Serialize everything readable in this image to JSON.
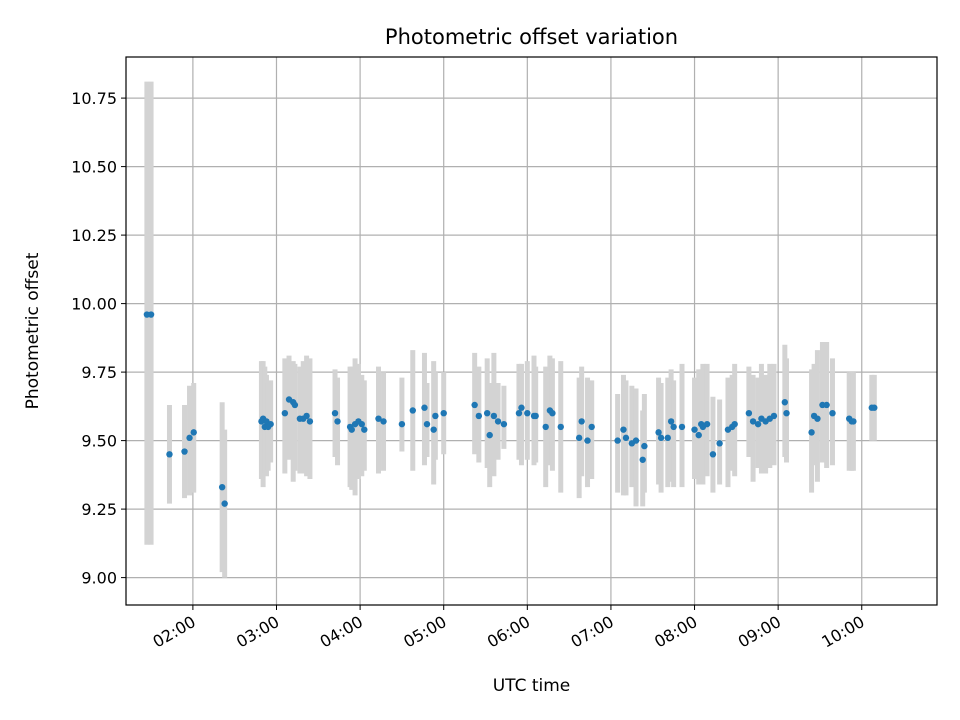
{
  "chart_data": {
    "type": "scatter",
    "title": "Photometric offset variation",
    "xlabel": "UTC time",
    "ylabel": "Photometric offset",
    "x_unit": "hours (UTC)",
    "xlim": [
      1.2,
      10.9
    ],
    "ylim": [
      8.9,
      10.9
    ],
    "x_ticks": [
      {
        "value": 2,
        "label": "02:00"
      },
      {
        "value": 3,
        "label": "03:00"
      },
      {
        "value": 4,
        "label": "04:00"
      },
      {
        "value": 5,
        "label": "05:00"
      },
      {
        "value": 6,
        "label": "06:00"
      },
      {
        "value": 7,
        "label": "07:00"
      },
      {
        "value": 8,
        "label": "08:00"
      },
      {
        "value": 9,
        "label": "09:00"
      },
      {
        "value": 10,
        "label": "10:00"
      }
    ],
    "y_ticks": [
      {
        "value": 9.0,
        "label": "9.00"
      },
      {
        "value": 9.25,
        "label": "9.25"
      },
      {
        "value": 9.5,
        "label": "9.50"
      },
      {
        "value": 9.75,
        "label": "9.75"
      },
      {
        "value": 10.0,
        "label": "10.00"
      },
      {
        "value": 10.25,
        "label": "10.25"
      },
      {
        "value": 10.5,
        "label": "10.50"
      },
      {
        "value": 10.75,
        "label": "10.75"
      }
    ],
    "grid": true,
    "colors": {
      "point": "#1f77b4",
      "errorbar": "#d3d3d3"
    },
    "series": [
      {
        "x": [
          1.45,
          1.5,
          1.72,
          1.9,
          1.96,
          2.01,
          2.35,
          2.38,
          2.82,
          2.84,
          2.86,
          2.88,
          2.9,
          2.93,
          3.1,
          3.15,
          3.2,
          3.22,
          3.28,
          3.32,
          3.36,
          3.4,
          3.7,
          3.73,
          3.88,
          3.9,
          3.94,
          3.98,
          4.02,
          4.05,
          4.22,
          4.28,
          4.5,
          4.63,
          4.77,
          4.8,
          4.88,
          4.9,
          5.0,
          5.37,
          5.42,
          5.52,
          5.55,
          5.6,
          5.65,
          5.72,
          5.9,
          5.93,
          6.0,
          6.08,
          6.1,
          6.22,
          6.27,
          6.3,
          6.4,
          6.62,
          6.65,
          6.72,
          6.77,
          7.08,
          7.15,
          7.18,
          7.25,
          7.3,
          7.38,
          7.4,
          7.57,
          7.6,
          7.68,
          7.72,
          7.75,
          7.85,
          8.0,
          8.05,
          8.08,
          8.1,
          8.15,
          8.22,
          8.3,
          8.4,
          8.45,
          8.48,
          8.65,
          8.7,
          8.76,
          8.8,
          8.85,
          8.9,
          8.95,
          9.08,
          9.1,
          9.4,
          9.43,
          9.47,
          9.53,
          9.58,
          9.65,
          9.85,
          9.88,
          9.9,
          10.12,
          10.15
        ],
        "y": [
          9.96,
          9.96,
          9.45,
          9.46,
          9.51,
          9.53,
          9.33,
          9.27,
          9.57,
          9.58,
          9.55,
          9.57,
          9.55,
          9.56,
          9.6,
          9.65,
          9.64,
          9.63,
          9.58,
          9.58,
          9.59,
          9.57,
          9.6,
          9.57,
          9.55,
          9.54,
          9.56,
          9.57,
          9.56,
          9.54,
          9.58,
          9.57,
          9.56,
          9.61,
          9.62,
          9.56,
          9.54,
          9.59,
          9.6,
          9.63,
          9.59,
          9.6,
          9.52,
          9.59,
          9.57,
          9.56,
          9.6,
          9.62,
          9.6,
          9.59,
          9.59,
          9.55,
          9.61,
          9.6,
          9.55,
          9.51,
          9.57,
          9.5,
          9.55,
          9.5,
          9.54,
          9.51,
          9.49,
          9.5,
          9.43,
          9.48,
          9.53,
          9.51,
          9.51,
          9.57,
          9.55,
          9.55,
          9.54,
          9.52,
          9.56,
          9.55,
          9.56,
          9.45,
          9.49,
          9.54,
          9.55,
          9.56,
          9.6,
          9.57,
          9.56,
          9.58,
          9.57,
          9.58,
          9.59,
          9.64,
          9.6,
          9.53,
          9.59,
          9.58,
          9.63,
          9.63,
          9.6,
          9.58,
          9.57,
          9.57,
          9.62,
          9.62
        ],
        "yerr_low": [
          9.12,
          9.12,
          9.27,
          9.29,
          9.3,
          9.31,
          9.02,
          9.0,
          9.36,
          9.33,
          9.38,
          9.37,
          9.39,
          9.42,
          9.38,
          9.43,
          9.35,
          9.39,
          9.38,
          9.38,
          9.37,
          9.36,
          9.44,
          9.41,
          9.33,
          9.32,
          9.3,
          9.36,
          9.37,
          9.39,
          9.38,
          9.39,
          9.46,
          9.39,
          9.41,
          9.44,
          9.34,
          9.43,
          9.45,
          9.45,
          9.42,
          9.4,
          9.33,
          9.37,
          9.43,
          9.47,
          9.43,
          9.41,
          9.43,
          9.41,
          9.42,
          9.33,
          9.41,
          9.39,
          9.31,
          9.29,
          9.37,
          9.33,
          9.36,
          9.31,
          9.3,
          9.3,
          9.33,
          9.26,
          9.26,
          9.31,
          9.34,
          9.31,
          9.33,
          9.35,
          9.33,
          9.33,
          9.36,
          9.34,
          9.35,
          9.34,
          9.37,
          9.31,
          9.34,
          9.33,
          9.39,
          9.37,
          9.44,
          9.35,
          9.4,
          9.38,
          9.38,
          9.4,
          9.41,
          9.44,
          9.42,
          9.31,
          9.41,
          9.35,
          9.42,
          9.4,
          9.41,
          9.39,
          9.39,
          9.39,
          9.5,
          9.5
        ],
        "yerr_high": [
          10.81,
          10.81,
          9.63,
          9.63,
          9.7,
          9.71,
          9.64,
          9.54,
          9.79,
          9.79,
          9.77,
          9.74,
          9.71,
          9.72,
          9.8,
          9.81,
          9.79,
          9.78,
          9.77,
          9.79,
          9.81,
          9.8,
          9.76,
          9.73,
          9.77,
          9.77,
          9.8,
          9.78,
          9.74,
          9.72,
          9.77,
          9.75,
          9.73,
          9.83,
          9.82,
          9.71,
          9.79,
          9.75,
          9.75,
          9.82,
          9.77,
          9.8,
          9.71,
          9.82,
          9.71,
          9.7,
          9.78,
          9.78,
          9.79,
          9.81,
          9.77,
          9.77,
          9.81,
          9.8,
          9.79,
          9.73,
          9.77,
          9.73,
          9.72,
          9.67,
          9.74,
          9.72,
          9.7,
          9.69,
          9.61,
          9.67,
          9.73,
          9.71,
          9.73,
          9.76,
          9.72,
          9.78,
          9.73,
          9.76,
          9.76,
          9.78,
          9.78,
          9.66,
          9.65,
          9.73,
          9.74,
          9.78,
          9.77,
          9.74,
          9.73,
          9.78,
          9.74,
          9.78,
          9.78,
          9.85,
          9.8,
          9.76,
          9.78,
          9.83,
          9.86,
          9.86,
          9.8,
          9.75,
          9.75,
          9.75,
          9.74,
          9.74
        ]
      }
    ]
  }
}
